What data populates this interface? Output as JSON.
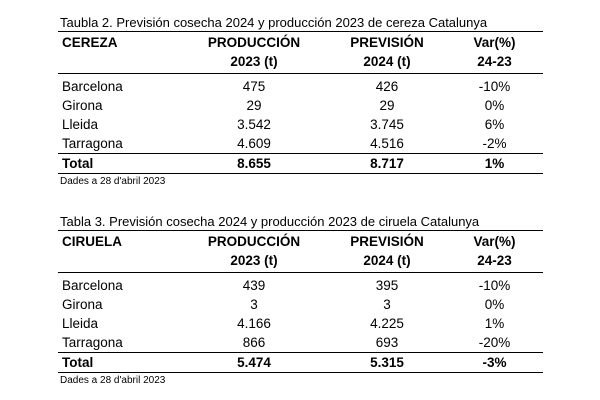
{
  "tables": [
    {
      "caption": "Taubla 2. Previsión cosecha 2024 y producción 2023 de cereza Catalunya",
      "headers": [
        [
          "CEREZA"
        ],
        [
          "PRODUCCIÓN",
          "2023 (t)"
        ],
        [
          "PREVISIÓN",
          "2024 (t)"
        ],
        [
          "Var(%)",
          "24-23"
        ]
      ],
      "rows": [
        [
          "Barcelona",
          "475",
          "426",
          "-10%"
        ],
        [
          "Girona",
          "29",
          "29",
          "0%"
        ],
        [
          "Lleida",
          "3.542",
          "3.745",
          "6%"
        ],
        [
          "Tarragona",
          "4.609",
          "4.516",
          "-2%"
        ]
      ],
      "total": [
        "Total",
        "8.655",
        "8.717",
        "1%"
      ],
      "note": "Dades a 28 d'abril 2023"
    },
    {
      "caption": "Tabla 3. Previsión cosecha 2024 y producción 2023 de ciruela Catalunya",
      "headers": [
        [
          "CIRUELA"
        ],
        [
          "PRODUCCIÓN",
          "2023 (t)"
        ],
        [
          "PREVISIÓN",
          "2024 (t)"
        ],
        [
          "Var(%)",
          "24-23"
        ]
      ],
      "rows": [
        [
          "Barcelona",
          "439",
          "395",
          "-10%"
        ],
        [
          "Girona",
          "3",
          "3",
          "0%"
        ],
        [
          "Lleida",
          "4.166",
          "4.225",
          "1%"
        ],
        [
          "Tarragona",
          "866",
          "693",
          "-20%"
        ]
      ],
      "total": [
        "Total",
        "5.474",
        "5.315",
        "-3%"
      ],
      "note": "Dades a 28 d'abril 2023"
    }
  ]
}
